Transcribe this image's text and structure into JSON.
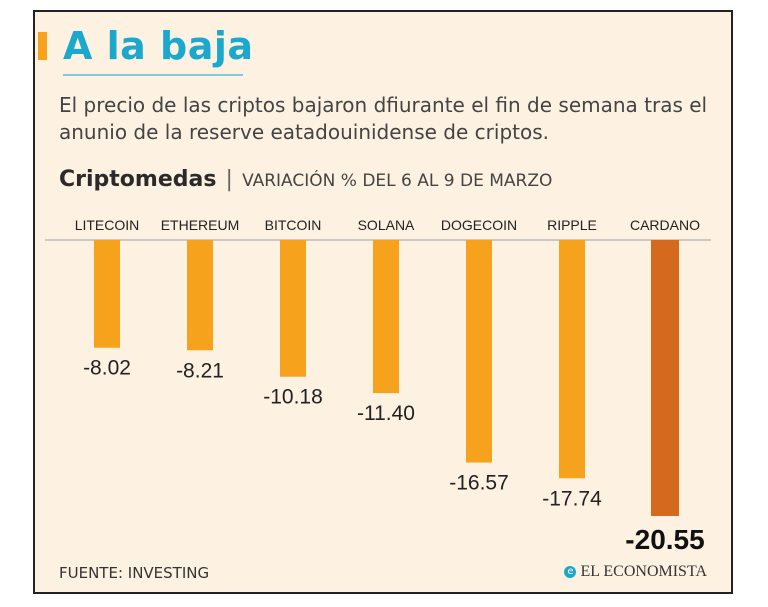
{
  "header": {
    "title": "A la baja",
    "subtitle": "El precio de las criptos bajaron dfiurante el fin de semana tras el anunio de la reserve eatadouinidense de criptos."
  },
  "chart_heading": {
    "name": "Criptomedas",
    "separator": "|",
    "description": "VARIACIÓN % DEL 6 AL 9 DE MARZO"
  },
  "chart_data": {
    "type": "bar",
    "title": "Criptomedas",
    "subtitle": "VARIACIÓN % DEL 6 AL 9 DE MARZO",
    "categories": [
      "LITECOIN",
      "ETHEREUM",
      "BITCOIN",
      "SOLANA",
      "DOGECOIN",
      "RIPPLE",
      "CARDANO"
    ],
    "values": [
      -8.02,
      -8.21,
      -10.18,
      -11.4,
      -16.57,
      -17.74,
      -20.55
    ],
    "value_labels": [
      "-8.02",
      "-8.21",
      "-10.18",
      "-11.40",
      "-16.57",
      "-17.74",
      "-20.55"
    ],
    "ylim": [
      -20.55,
      0
    ],
    "colors": {
      "default": "#f7a21c",
      "highlight": "#d5691e"
    },
    "highlight_index": 6
  },
  "footer": {
    "source": "FUENTE: INVESTING",
    "brand": "EL ECONOMISTA",
    "brand_icon": "e-logo-icon"
  }
}
